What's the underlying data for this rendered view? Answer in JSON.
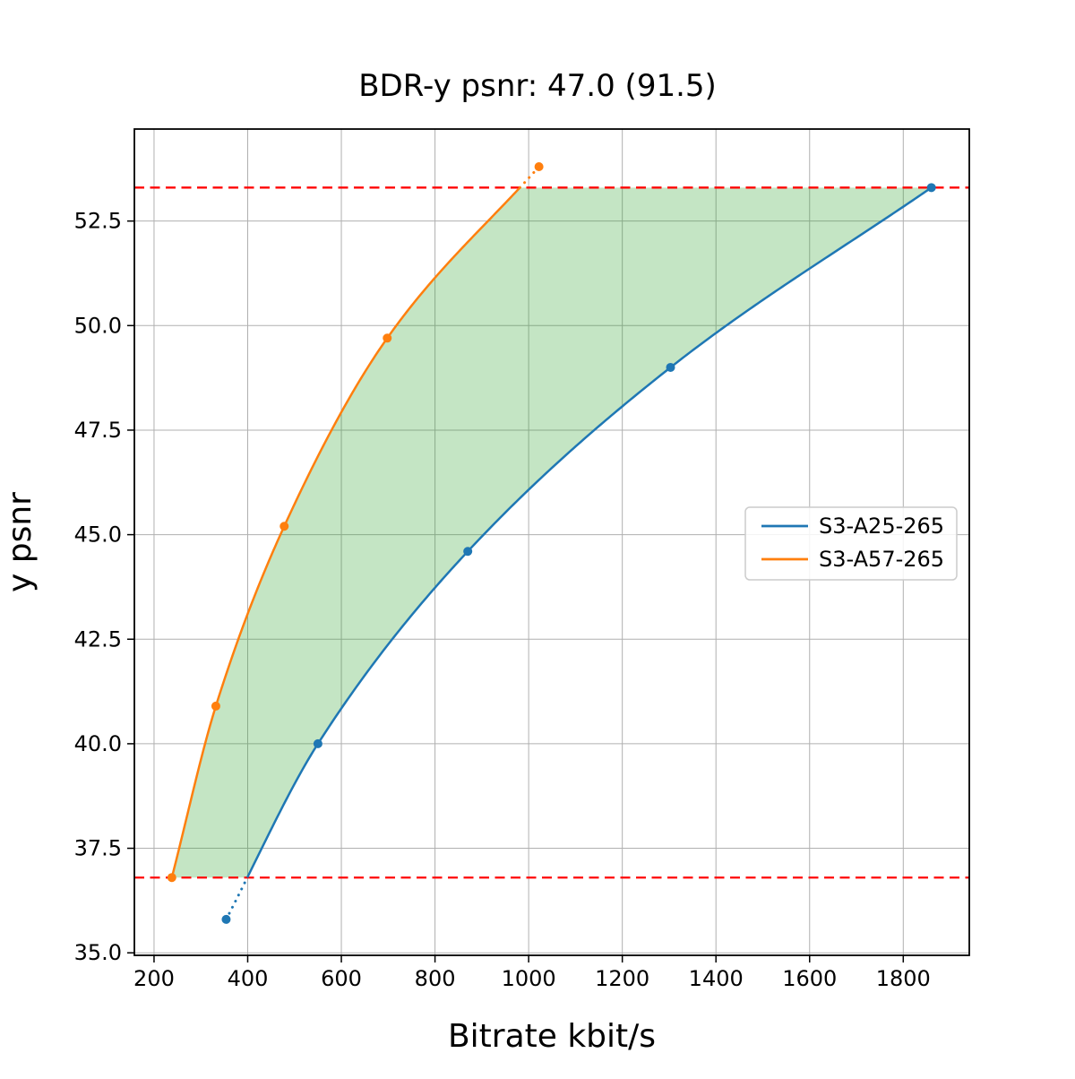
{
  "chart_data": {
    "type": "line",
    "title": "BDR-y psnr: 47.0 (91.5)",
    "xlabel": "Bitrate kbit/s",
    "ylabel": "y psnr",
    "xlim": [
      158,
      1941
    ],
    "ylim": [
      34.94,
      54.7
    ],
    "grid": true,
    "x_ticks": [
      200,
      400,
      600,
      800,
      1000,
      1200,
      1400,
      1600,
      1800
    ],
    "x_tick_labels": [
      "200",
      "400",
      "600",
      "800",
      "1000",
      "1200",
      "1400",
      "1600",
      "1800"
    ],
    "y_ticks": [
      35.0,
      37.5,
      40.0,
      42.5,
      45.0,
      47.5,
      50.0,
      52.5
    ],
    "y_tick_labels": [
      "35.0",
      "37.5",
      "40.0",
      "42.5",
      "45.0",
      "47.5",
      "50.0",
      "52.5"
    ],
    "series": [
      {
        "name": "S3-A25-265",
        "color": "#1f77b4",
        "points": [
          [
            354,
            35.8
          ],
          [
            550,
            40.0
          ],
          [
            870,
            44.6
          ],
          [
            1303,
            49.0
          ],
          [
            1860,
            53.3
          ]
        ]
      },
      {
        "name": "S3-A57-265",
        "color": "#ff7f0e",
        "points": [
          [
            238,
            36.8
          ],
          [
            332,
            40.9
          ],
          [
            478,
            45.2
          ],
          [
            698,
            49.7
          ],
          [
            1022,
            53.8
          ]
        ]
      }
    ],
    "overlap_region": {
      "psnr_min": 36.8,
      "psnr_max": 53.3,
      "line_color": "#ff0000",
      "line_style": "dashed",
      "fill_color": "#2ca02c",
      "fill_opacity": 0.28
    },
    "legend": {
      "position": "center-right",
      "entries": [
        "S3-A25-265",
        "S3-A57-265"
      ]
    }
  },
  "colors": {
    "background": "#ffffff",
    "grid": "#b0b0b0",
    "axes": "#000000",
    "legend_border": "#cccccc"
  }
}
